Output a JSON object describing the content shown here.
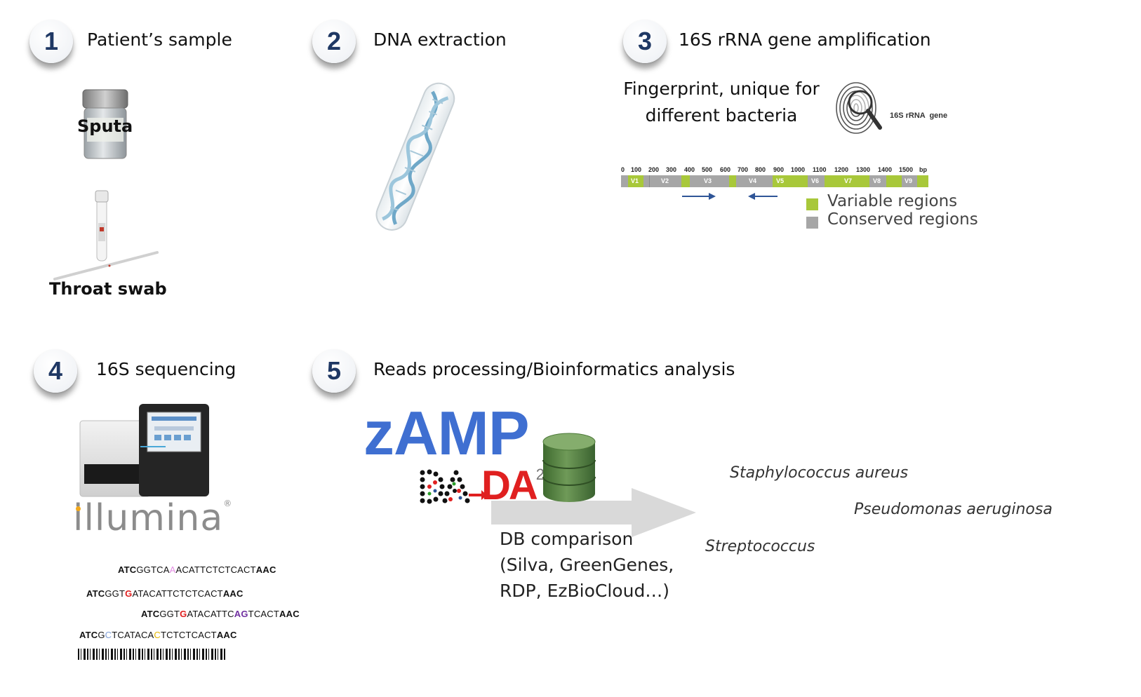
{
  "steps": [
    {
      "number": "1",
      "title": "Patient’s sample"
    },
    {
      "number": "2",
      "title": "DNA extraction"
    },
    {
      "number": "3",
      "title": "16S rRNA gene amplification"
    },
    {
      "number": "4",
      "title": "16S sequencing"
    },
    {
      "number": "5",
      "title": "Reads processing/Bioinformatics analysis"
    }
  ],
  "samples": {
    "sputa": "Sputa",
    "throat_swab": "Throat swab"
  },
  "fingerprint": {
    "line1": "Fingerprint, unique for",
    "line2": "different bacteria",
    "gene_label": "16S rRNA  gene"
  },
  "gene_map": {
    "ticks": [
      "0",
      "100",
      "200",
      "300",
      "400",
      "500",
      "600",
      "700",
      "800",
      "900",
      "1000",
      "1100",
      "1200",
      "1300",
      "1400",
      "1500",
      "bp"
    ],
    "regions": [
      "V1",
      "V2",
      "V3",
      "V4",
      "V5",
      "V6",
      "V7",
      "V8",
      "V9"
    ],
    "legend": {
      "variable": "Variable regions",
      "conserved": "Conserved regions"
    },
    "colors": {
      "variable": "#a8c83a",
      "conserved": "#a6a6a6",
      "primer_arrow": "#2f5597"
    }
  },
  "sequencer": {
    "brand": "illumina",
    "registered": "®"
  },
  "reads": [
    {
      "a": "ATC",
      "mid": [
        [
          "GGTCA",
          ""
        ],
        [
          "A",
          "#e28de2"
        ],
        [
          "ACATTCTCTCACT",
          ""
        ]
      ],
      "z": "AAC"
    },
    {
      "a": "ATC",
      "mid": [
        [
          "GGT",
          ""
        ],
        [
          "G",
          "#e02020"
        ],
        [
          "ATACATTCTCTCACT",
          ""
        ]
      ],
      "z": "AAC"
    },
    {
      "a": "ATC",
      "mid": [
        [
          "GGT",
          ""
        ],
        [
          "G",
          "#e02020"
        ],
        [
          "ATACATTC",
          ""
        ],
        [
          "AG",
          "#7030a0"
        ],
        [
          "TCACT",
          ""
        ]
      ],
      "z": "AAC"
    },
    {
      "a": "ATC",
      "mid": [
        [
          "G",
          ""
        ],
        [
          "C",
          "#7f9fd8"
        ],
        [
          "TCATACA",
          ""
        ],
        [
          "C",
          "#e6b800"
        ],
        [
          "TCTCTCACT",
          ""
        ]
      ],
      "z": "AAC"
    }
  ],
  "tools": {
    "zamp": "zAMP",
    "dada_a": "DA",
    "dada_b": "DA",
    "dada_sup": "2"
  },
  "db": {
    "line1": "DB comparison",
    "line2": "(Silva, GreenGenes,",
    "line3": "RDP, EzBioCloud…)"
  },
  "species": [
    "Staphylococcus aureus",
    "Pseudomonas aeruginosa",
    "Streptococcus"
  ],
  "colors": {
    "step_number": "#1f3864",
    "zamp": "#3f6fd1",
    "dada": "#e02020",
    "db_cylinder": "#4e7a3a",
    "arrow": "#d9d9d9"
  }
}
